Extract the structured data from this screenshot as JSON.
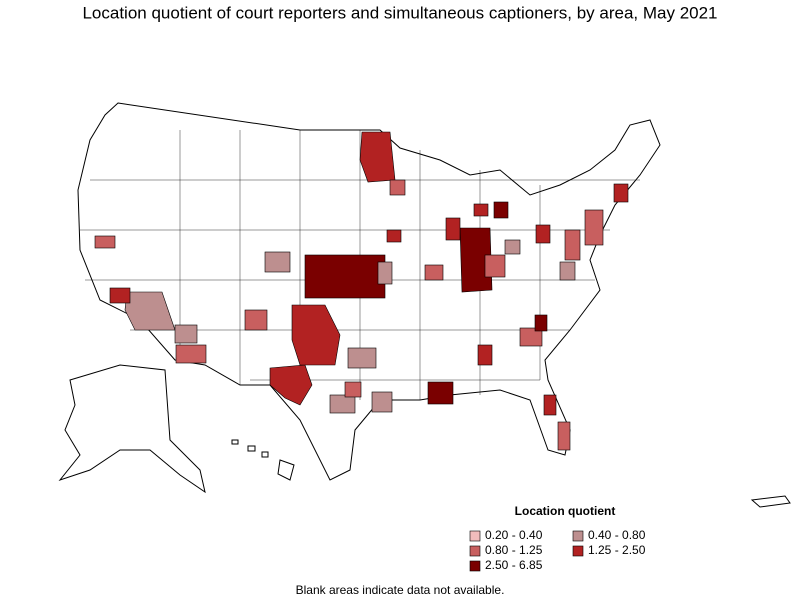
{
  "title": "Location quotient of court reporters and simultaneous captioners, by area, May 2021",
  "legend": {
    "title": "Location quotient",
    "items": [
      {
        "label": "0.20 - 0.40",
        "color": "#f2bcbc"
      },
      {
        "label": "0.40 - 0.80",
        "color": "#bd8f8f"
      },
      {
        "label": "0.80 - 1.25",
        "color": "#c85f5f"
      },
      {
        "label": "1.25 - 2.50",
        "color": "#b22222"
      },
      {
        "label": "2.50 - 6.85",
        "color": "#7a0000"
      }
    ]
  },
  "note": "Blank areas indicate data not available."
}
